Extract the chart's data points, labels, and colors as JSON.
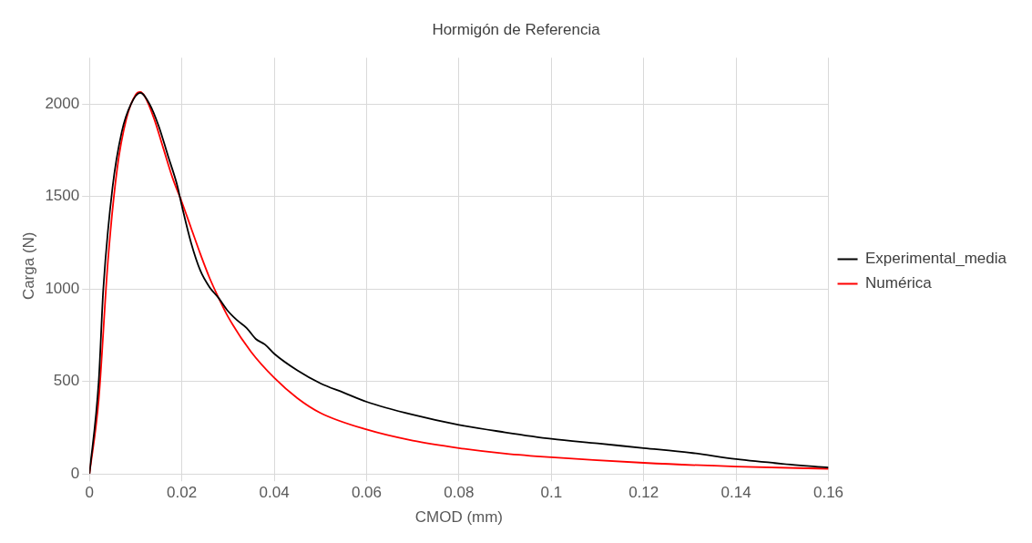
{
  "chart_data": {
    "type": "line",
    "title": "Hormigón de Referencia",
    "xlabel": "CMOD (mm)",
    "ylabel": "Carga (N)",
    "xlim": [
      0,
      0.16
    ],
    "xticks": [
      0,
      0.02,
      0.04,
      0.06,
      0.08,
      0.1,
      0.12,
      0.14,
      0.16
    ],
    "ylim": [
      0,
      2250
    ],
    "yticks": [
      0,
      500,
      1000,
      1500,
      2000
    ],
    "grid": true,
    "legend": "right",
    "marker": "none",
    "line_style": "solid",
    "series": [
      {
        "name": "Experimental_media",
        "color": "#000000",
        "x": [
          0,
          0.002,
          0.003,
          0.005,
          0.007,
          0.009,
          0.011,
          0.013,
          0.015,
          0.017,
          0.019,
          0.02,
          0.022,
          0.024,
          0.026,
          0.028,
          0.03,
          0.032,
          0.034,
          0.036,
          0.038,
          0.04,
          0.045,
          0.05,
          0.055,
          0.06,
          0.07,
          0.08,
          0.09,
          0.1,
          0.11,
          0.12,
          0.13,
          0.14,
          0.15,
          0.16
        ],
        "values": [
          0,
          500,
          1000,
          1550,
          1850,
          2000,
          2060,
          2000,
          1880,
          1720,
          1560,
          1450,
          1250,
          1100,
          1010,
          950,
          880,
          830,
          790,
          730,
          700,
          650,
          560,
          490,
          440,
          390,
          320,
          265,
          225,
          190,
          165,
          140,
          115,
          80,
          55,
          35
        ]
      },
      {
        "name": "Numérica",
        "color": "#ff0000",
        "x": [
          0,
          0.002,
          0.004,
          0.006,
          0.008,
          0.01,
          0.011,
          0.012,
          0.014,
          0.016,
          0.018,
          0.02,
          0.022,
          0.024,
          0.026,
          0.028,
          0.03,
          0.035,
          0.04,
          0.045,
          0.05,
          0.06,
          0.07,
          0.08,
          0.09,
          0.1,
          0.12,
          0.14,
          0.16
        ],
        "values": [
          0,
          400,
          1150,
          1650,
          1920,
          2050,
          2065,
          2040,
          1920,
          1760,
          1600,
          1470,
          1330,
          1190,
          1060,
          950,
          850,
          660,
          520,
          410,
          330,
          240,
          180,
          140,
          110,
          90,
          60,
          40,
          28
        ]
      }
    ]
  }
}
